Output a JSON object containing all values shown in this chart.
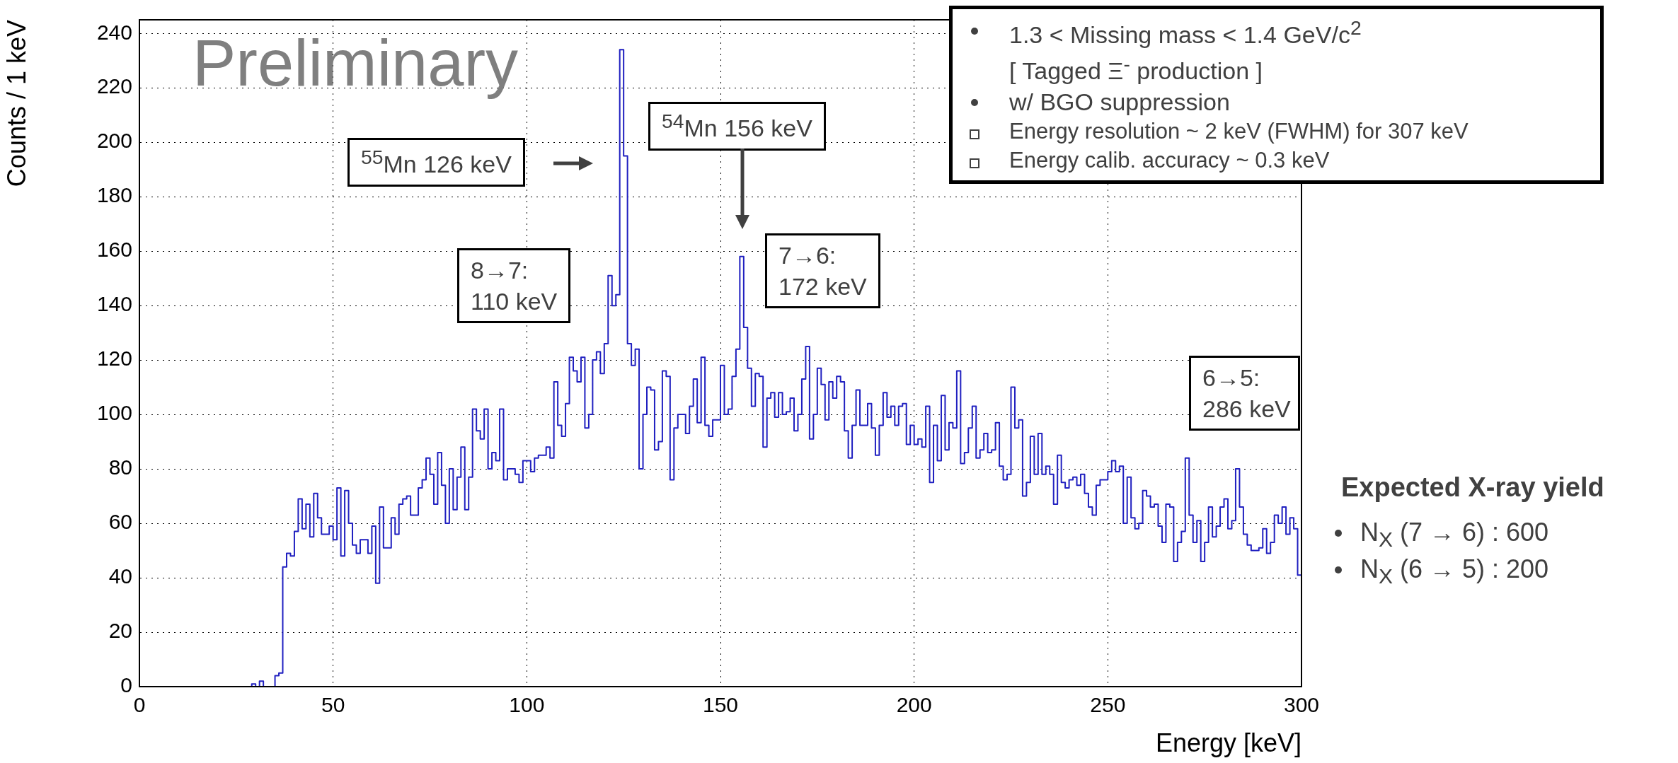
{
  "chart_data": {
    "type": "histogram",
    "xlabel": "Energy [keV]",
    "ylabel": "Counts / 1 keV",
    "color": "#2020c0",
    "xlim": [
      0,
      300
    ],
    "ylim": [
      0,
      245
    ],
    "xticks": [
      0,
      50,
      100,
      150,
      200,
      250,
      300
    ],
    "yticks": [
      0,
      20,
      40,
      60,
      80,
      100,
      120,
      140,
      160,
      180,
      200,
      220,
      240
    ],
    "grid": true,
    "legend": false,
    "bins": [
      0,
      1,
      2,
      3,
      4,
      5,
      6,
      7,
      8,
      9,
      10,
      11,
      12,
      13,
      14,
      15,
      16,
      17,
      18,
      19,
      20,
      21,
      22,
      23,
      24,
      25,
      26,
      27,
      28,
      29,
      30,
      31,
      32,
      33,
      34,
      35,
      36,
      37,
      38,
      39,
      40,
      41,
      42,
      43,
      44,
      45,
      46,
      47,
      48,
      49,
      50,
      51,
      52,
      53,
      54,
      55,
      56,
      57,
      58,
      59,
      60,
      61,
      62,
      63,
      64,
      65,
      66,
      67,
      68,
      69,
      70,
      71,
      72,
      73,
      74,
      75,
      76,
      77,
      78,
      79,
      80,
      81,
      82,
      83,
      84,
      85,
      86,
      87,
      88,
      89,
      90,
      91,
      92,
      93,
      94,
      95,
      96,
      97,
      98,
      99,
      100,
      101,
      102,
      103,
      104,
      105,
      106,
      107,
      108,
      109,
      110,
      111,
      112,
      113,
      114,
      115,
      116,
      117,
      118,
      119,
      120,
      121,
      122,
      123,
      124,
      125,
      126,
      127,
      128,
      129,
      130,
      131,
      132,
      133,
      134,
      135,
      136,
      137,
      138,
      139,
      140,
      141,
      142,
      143,
      144,
      145,
      146,
      147,
      148,
      149,
      150,
      151,
      152,
      153,
      154,
      155,
      156,
      157,
      158,
      159,
      160,
      161,
      162,
      163,
      164,
      165,
      166,
      167,
      168,
      169,
      170,
      171,
      172,
      173,
      174,
      175,
      176,
      177,
      178,
      179,
      180,
      181,
      182,
      183,
      184,
      185,
      186,
      187,
      188,
      189,
      190,
      191,
      192,
      193,
      194,
      195,
      196,
      197,
      198,
      199,
      200,
      201,
      202,
      203,
      204,
      205,
      206,
      207,
      208,
      209,
      210,
      211,
      212,
      213,
      214,
      215,
      216,
      217,
      218,
      219,
      220,
      221,
      222,
      223,
      224,
      225,
      226,
      227,
      228,
      229,
      230,
      231,
      232,
      233,
      234,
      235,
      236,
      237,
      238,
      239,
      240,
      241,
      242,
      243,
      244,
      245,
      246,
      247,
      248,
      249,
      250,
      251,
      252,
      253,
      254,
      255,
      256,
      257,
      258,
      259,
      260,
      261,
      262,
      263,
      264,
      265,
      266,
      267,
      268,
      269,
      270,
      271,
      272,
      273,
      274,
      275,
      276,
      277,
      278,
      279,
      280,
      281,
      282,
      283,
      284,
      285,
      286,
      287,
      288,
      289,
      290,
      291,
      292,
      293,
      294,
      295,
      296,
      297,
      298,
      299,
      300
    ],
    "values": [
      0,
      0,
      0,
      0,
      0,
      0,
      0,
      0,
      0,
      0,
      0,
      0,
      0,
      0,
      0,
      0,
      0,
      0,
      0,
      0,
      0,
      0,
      0,
      0,
      0,
      0,
      0,
      0,
      0,
      1,
      0,
      2,
      0,
      0,
      0,
      4,
      5,
      44,
      49,
      48,
      57,
      69,
      58,
      67,
      55,
      71,
      62,
      56,
      56,
      59,
      54,
      73,
      48,
      72,
      60,
      52,
      49,
      54,
      54,
      49,
      59,
      38,
      66,
      51,
      51,
      62,
      56,
      67,
      69,
      70,
      63,
      63,
      73,
      76,
      84,
      78,
      67,
      86,
      74,
      60,
      80,
      65,
      77,
      88,
      65,
      77,
      102,
      94,
      91,
      102,
      80,
      86,
      83,
      102,
      76,
      80,
      80,
      78,
      75,
      83,
      83,
      79,
      84,
      85,
      85,
      88,
      84,
      112,
      96,
      92,
      104,
      121,
      116,
      112,
      121,
      95,
      100,
      120,
      123,
      115,
      126,
      151,
      140,
      144,
      234,
      195,
      126,
      118,
      124,
      80,
      100,
      110,
      109,
      87,
      90,
      116,
      114,
      76,
      95,
      100,
      100,
      93,
      103,
      113,
      97,
      121,
      96,
      92,
      98,
      98,
      118,
      100,
      102,
      114,
      124,
      158,
      132,
      117,
      103,
      115,
      114,
      88,
      106,
      108,
      99,
      108,
      100,
      101,
      106,
      94,
      100,
      113,
      125,
      91,
      100,
      117,
      111,
      98,
      112,
      106,
      114,
      112,
      94,
      84,
      96,
      109,
      96,
      96,
      104,
      95,
      85,
      96,
      108,
      99,
      103,
      96,
      103,
      104,
      89,
      96,
      89,
      91,
      88,
      103,
      75,
      96,
      83,
      107,
      87,
      97,
      95,
      116,
      82,
      86,
      95,
      103,
      84,
      87,
      93,
      86,
      87,
      97,
      81,
      76,
      78,
      110,
      95,
      98,
      70,
      75,
      92,
      78,
      93,
      78,
      81,
      78,
      67,
      85,
      75,
      73,
      76,
      77,
      74,
      78,
      71,
      66,
      63,
      74,
      76,
      76,
      79,
      83,
      79,
      81,
      60,
      77,
      62,
      58,
      60,
      72,
      70,
      66,
      67,
      59,
      53,
      67,
      66,
      46,
      53,
      57,
      84,
      63,
      53,
      61,
      46,
      53,
      66,
      55,
      59,
      66,
      69,
      58,
      61,
      80,
      66,
      56,
      52,
      50,
      50,
      51,
      58,
      49,
      53,
      63,
      60,
      66,
      56,
      62,
      58,
      41
    ],
    "annotations": [
      "Preliminary",
      "1.3 < Missing mass < 1.4 GeV/c$^{2}$",
      "[ Tagged Ξ$^{-}$ production ]",
      "w/ BGO suppression",
      "Energy resolution ~ 2 keV (FWHM) for 307 keV",
      "Energy calib. accuracy ~ 0.3 keV",
      "$^{55}$Mn 126 keV",
      "$^{54}$Mn 156 keV",
      "8→7:\n110 keV",
      "7→6:\n172 keV",
      "6→5:\n286 keV",
      "Expected X-ray yield",
      "N$_{X}$ (7 → 6) : 600",
      "N$_{X}$ (6 → 5) : 200"
    ]
  }
}
